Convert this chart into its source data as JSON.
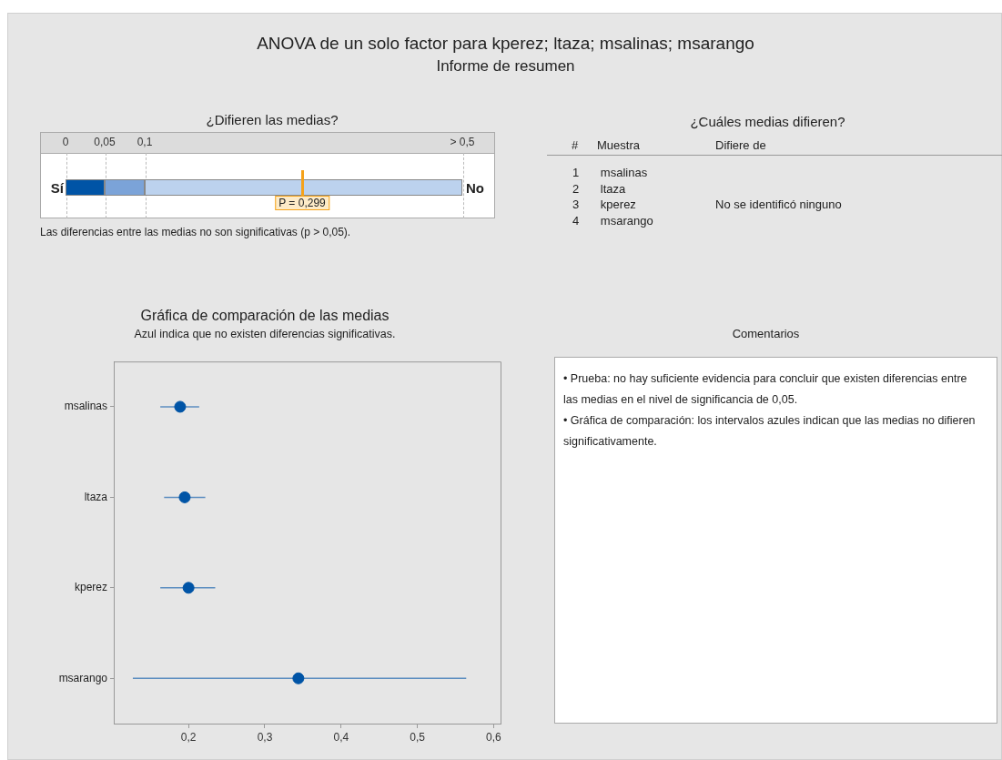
{
  "chart_data": [
    {
      "type": "other",
      "title": "ANOVA de un solo factor para kperez; ltaza; msalinas; msarango",
      "subtitle": "Informe de resumen"
    },
    {
      "type": "other",
      "title": "¿Difieren las medias?",
      "annotations": [
        "0",
        "0,05",
        "0,1",
        "> 0,5",
        "Sí",
        "No",
        "P = 0,299",
        "Las diferencias entre las medias no son significativas (p > 0,05)."
      ]
    },
    {
      "type": "other",
      "title": "¿Cuáles medias difieren?",
      "annotations": [
        "#",
        "Muestra",
        "Difiere de",
        "1 msalinas",
        "2 ltaza",
        "3 kperez",
        "No se identificó ninguno",
        "4 msarango"
      ]
    },
    {
      "type": "scatter",
      "title": "Gráfica de comparación de las medias",
      "subtitle": "Azul indica que no existen diferencias significativas.",
      "orientation": "horizontal",
      "categories": [
        "msalinas",
        "ltaza",
        "kperez",
        "msarango"
      ],
      "values": [
        0.189,
        0.195,
        0.2,
        0.344
      ],
      "errors": [
        [
          0.163,
          0.214
        ],
        [
          0.168,
          0.222
        ],
        [
          0.163,
          0.235
        ],
        [
          0.127,
          0.564
        ]
      ],
      "color": "#0054a6",
      "marker": "circle",
      "xlim": [
        0.102,
        0.609
      ],
      "xticks": [
        {
          "value": 0.2,
          "label": "0,2"
        },
        {
          "value": 0.3,
          "label": "0,3"
        },
        {
          "value": 0.4,
          "label": "0,4"
        },
        {
          "value": 0.5,
          "label": "0,5"
        },
        {
          "value": 0.6,
          "label": "0,6"
        }
      ],
      "grid": false,
      "legend": false
    },
    {
      "type": "other",
      "title": "Comentarios",
      "annotations": [
        "•  Prueba: no hay suficiente evidencia para concluir que existen diferencias entre las medias en el nivel de significancia de 0,05.",
        "•  Gráfica de comparación: los intervalos azules indican que las medias no difieren significativamente."
      ]
    }
  ]
}
